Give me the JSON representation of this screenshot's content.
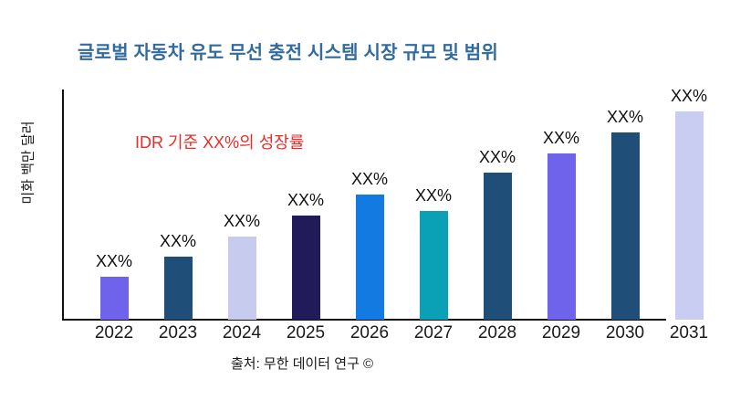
{
  "title": {
    "text": "글로벌 자동차 유도 무선 충전 시스템 시장 규모 및 범위",
    "color": "#326B9E"
  },
  "annotation": {
    "text": "IDR 기준 XX%의 성장률",
    "color": "#EC2B25"
  },
  "y_axis_label": "미화 백만 달러",
  "footer": "출처: 무한 데이터 연구 ©",
  "chart_data": {
    "type": "bar",
    "title": "글로벌 자동차 유도 무선 충전 시스템 시장 규모 및 범위",
    "xlabel": "",
    "ylabel": "미화 백만 달러",
    "categories": [
      "2022",
      "2023",
      "2024",
      "2025",
      "2026",
      "2027",
      "2028",
      "2029",
      "2030",
      "2031"
    ],
    "value_labels": [
      "XX%",
      "XX%",
      "XX%",
      "XX%",
      "XX%",
      "XX%",
      "XX%",
      "XX%",
      "XX%",
      "XX%"
    ],
    "values": [
      47,
      69,
      91,
      114,
      137,
      119,
      161,
      182,
      205,
      228
    ],
    "values_note": "estimated relative bar heights (numeric y-axis not shown; data labels masked as XX%)",
    "bar_colors": [
      "#6F63EB",
      "#1F4E79",
      "#C7CBEE",
      "#211B59",
      "#137AE2",
      "#0AA0B5",
      "#1F4E79",
      "#6F63EB",
      "#1F4E79",
      "#C9CDF1"
    ],
    "grid": false,
    "legend": false,
    "axis_color": "#111111"
  }
}
